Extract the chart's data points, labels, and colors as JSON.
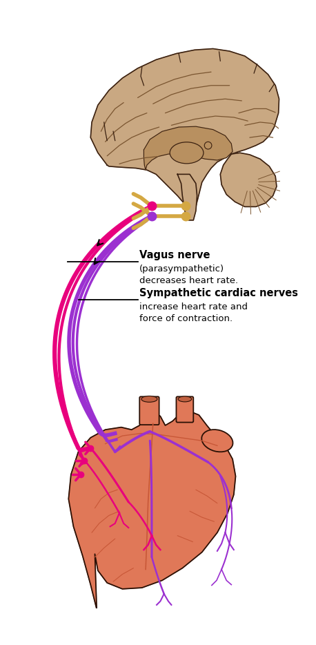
{
  "background_color": "#ffffff",
  "fig_width": 4.58,
  "fig_height": 9.34,
  "dpi": 100,
  "label1_bold": "Vagus nerve",
  "label1_normal": "(parasympathetic)\ndecreases heart rate.",
  "label2_bold": "Sympathetic cardiac nerves",
  "label2_normal": "increase heart rate and\nforce of contraction.",
  "vagus_color": "#E8007D",
  "sympathetic_color": "#9B30D0",
  "neuron_color": "#D4A843",
  "brain_color": "#C9A882",
  "brain_edge": "#3a2010",
  "heart_color": "#E07858",
  "heart_edge": "#2a1005",
  "nerve_lw": 3.5
}
